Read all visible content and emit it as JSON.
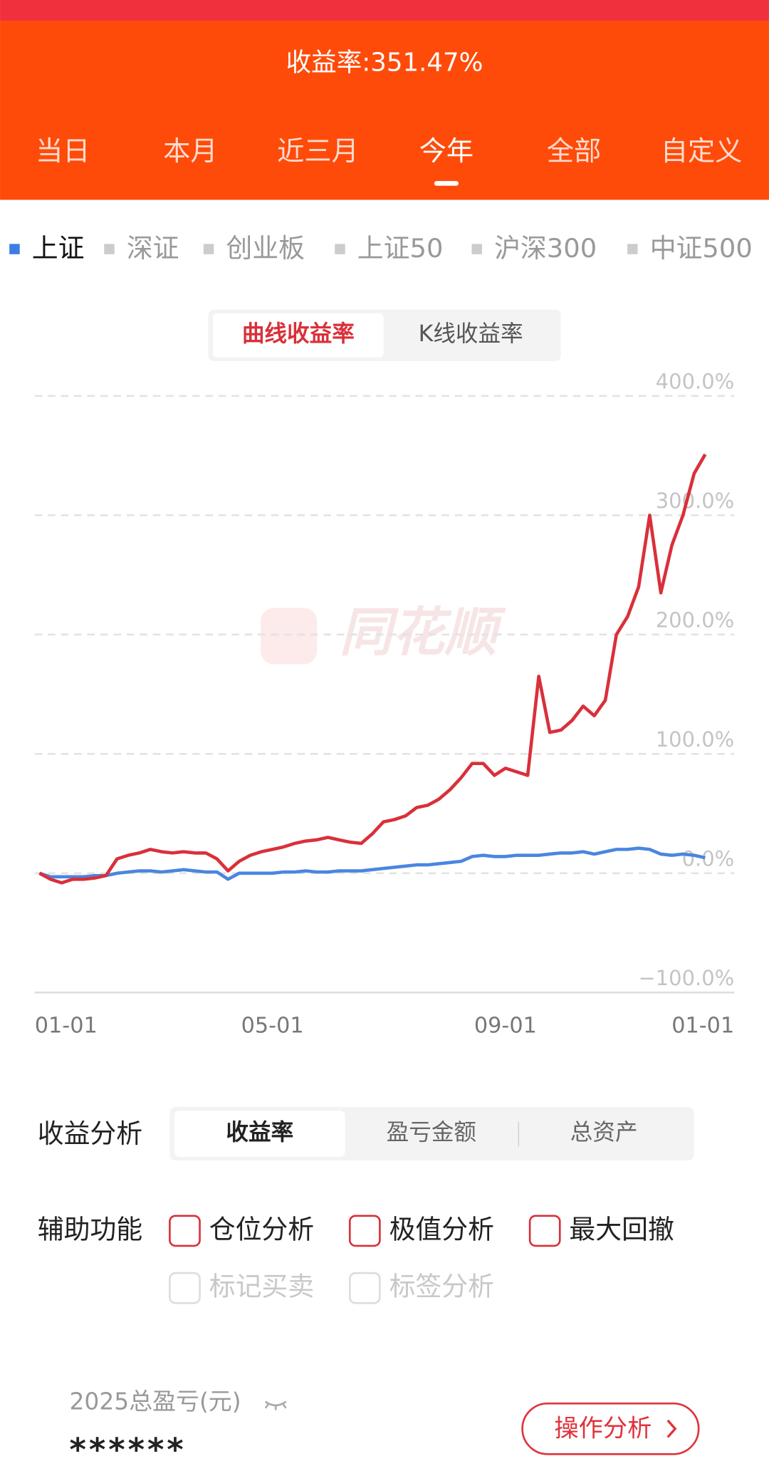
{
  "header": {
    "title": "收益率:351.47%",
    "period_tabs": [
      "当日",
      "本月",
      "近三月",
      "今年",
      "全部",
      "自定义"
    ],
    "selected_period": 3
  },
  "index_tabs": [
    "上证",
    "深证",
    "创业板",
    "上证50",
    "沪深300",
    "中证500"
  ],
  "selected_index": 0,
  "chart_mode_tabs": [
    "曲线收益率",
    "K线收益率"
  ],
  "selected_mode": 0,
  "watermark": "同花顺",
  "chart_data": {
    "type": "line",
    "categories": [
      "01-01",
      null,
      null,
      null,
      null,
      null,
      null,
      null,
      null,
      null,
      null,
      null,
      null,
      null,
      null,
      null,
      null,
      null,
      null,
      null,
      null,
      "05-01",
      null,
      null,
      null,
      null,
      null,
      null,
      null,
      null,
      null,
      null,
      null,
      null,
      null,
      null,
      null,
      null,
      null,
      null,
      null,
      null,
      "09-01",
      null,
      null,
      null,
      null,
      null,
      null,
      null,
      null,
      null,
      null,
      null,
      null,
      null,
      null,
      null,
      null,
      null,
      "01-01"
    ],
    "series": [
      {
        "color": "#d9303a",
        "values": [
          0,
          -5,
          -8,
          -5,
          -5,
          -4,
          -2,
          12,
          15,
          17,
          20,
          18,
          17,
          18,
          17,
          17,
          12,
          2,
          10,
          15,
          18,
          20,
          22,
          25,
          27,
          28,
          30,
          28,
          26,
          25,
          33,
          43,
          45,
          48,
          55,
          57,
          62,
          70,
          80,
          92,
          92,
          82,
          88,
          85,
          82,
          165,
          118,
          120,
          128,
          140,
          132,
          145,
          200,
          215,
          240,
          300,
          235,
          275,
          300,
          335,
          351
        ]
      },
      {
        "color": "#4a86e0",
        "values": [
          0,
          -3,
          -3,
          -3,
          -3,
          -2,
          -2,
          0,
          1,
          2,
          2,
          1,
          2,
          3,
          2,
          1,
          1,
          -5,
          0,
          0,
          0,
          0,
          1,
          1,
          2,
          1,
          1,
          2,
          2,
          2,
          3,
          4,
          5,
          6,
          7,
          7,
          8,
          9,
          10,
          14,
          15,
          14,
          14,
          15,
          15,
          15,
          16,
          17,
          17,
          18,
          16,
          18,
          20,
          20,
          21,
          20,
          16,
          15,
          16,
          15,
          13
        ]
      }
    ],
    "ylim": [
      -100,
      400
    ],
    "yticks": [
      {
        "value": -100,
        "label": "−100.0%"
      },
      {
        "value": 0,
        "label": "0.0%"
      },
      {
        "value": 100,
        "label": "100.0%"
      },
      {
        "value": 200,
        "label": "200.0%"
      },
      {
        "value": 300,
        "label": "300.0%"
      },
      {
        "value": 400,
        "label": "400.0%"
      }
    ],
    "grid": true
  },
  "analysis": {
    "label": "收益分析",
    "tabs": [
      "收益率",
      "盈亏金额",
      "总资产"
    ],
    "selected": 0
  },
  "aux": {
    "label": "辅助功能",
    "options": [
      {
        "label": "仓位分析",
        "enabled": true
      },
      {
        "label": "极值分析",
        "enabled": true
      },
      {
        "label": "最大回撤",
        "enabled": true
      },
      {
        "label": "标记买卖",
        "enabled": false
      },
      {
        "label": "标签分析",
        "enabled": false
      }
    ]
  },
  "summary": {
    "label": "2025总盈亏(元)",
    "value": "******",
    "button": "操作分析"
  }
}
